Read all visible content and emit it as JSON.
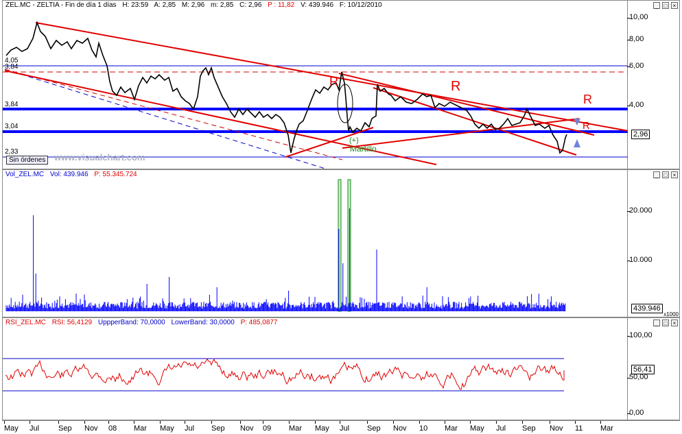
{
  "price_panel": {
    "title": {
      "symbol": "ZEL.MC - ZELTIA - Fin de día 1 días",
      "high": "H: 23:59",
      "open": "A: 2,85",
      "max": "M: 2,96",
      "min": "m: 2,85",
      "close": "C: 2,96",
      "pct": "P : 11,82",
      "volume": "V: 439.946",
      "date": "F: 10/12/2010"
    },
    "y_ticks": [
      "10,00",
      "8,00",
      "6,00",
      "4,00"
    ],
    "current_value": "2,96",
    "levels": [
      "4,05",
      "3,84",
      "3,84",
      "3,04",
      "2,33"
    ],
    "orders_badge": "Sin órdenes",
    "watermark": "www.visualchart.com",
    "annotations": {
      "r1": "R",
      "r2": "R",
      "r3": "R",
      "r4": "R",
      "hammer_sign": "(+)",
      "hammer_label": "Martillo"
    }
  },
  "volume_panel": {
    "title": {
      "label": "Vol_ZEL.MC",
      "vol": "Vol: 439.946",
      "pct": "P: 55.345.724"
    },
    "y_ticks": [
      "20.000",
      "10.000"
    ],
    "current_value": "439.946",
    "multiplier": "x1000"
  },
  "rsi_panel": {
    "title": {
      "label": "RSI_ZEL.MC",
      "rsi": "RSI: 56,4129",
      "upper": "UppperBand: 70,0000",
      "lower": "LowerBand: 30,0000",
      "pct": "P: 485,0877"
    },
    "y_ticks": [
      "100,00",
      "50,00",
      "0,00"
    ],
    "current_value": "56,41"
  },
  "x_axis": [
    "May",
    "Jul",
    "Sep",
    "Nov",
    "08",
    "Mar",
    "May",
    "Jul",
    "Sep",
    "Nov",
    "09",
    "Mar",
    "May",
    "Jul",
    "Sep",
    "Nov",
    "10",
    "Mar",
    "May",
    "Jul",
    "Sep",
    "Nov",
    "11",
    "Mar"
  ],
  "colors": {
    "price": "#000000",
    "channel": "#e00000",
    "support": "#0000ff",
    "volume": "#0000ff",
    "rsi": "#e00000",
    "hammer": "#1a8a1a"
  }
}
